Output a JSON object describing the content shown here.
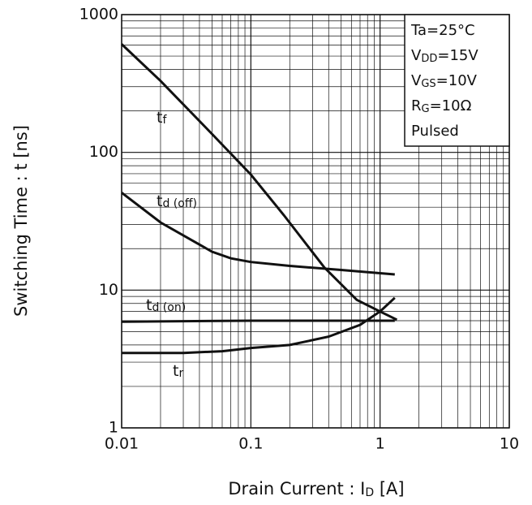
{
  "chart_data": {
    "type": "line",
    "log_x": true,
    "log_y": true,
    "grid": true,
    "x_label": {
      "main": "Drain Current : I",
      "sub": "D",
      "rest": " [A]"
    },
    "y_label": "Switching Time : t [ns]",
    "xlim": [
      0.01,
      10
    ],
    "ylim": [
      1,
      1000
    ],
    "xticks": [
      0.01,
      0.1,
      1,
      10
    ],
    "yticks": [
      1,
      10,
      100,
      1000
    ],
    "series": [
      {
        "name": {
          "main": "t",
          "sub": "f"
        },
        "color": "#111111",
        "x": [
          0.01,
          0.02,
          0.05,
          0.1,
          0.18,
          0.37,
          0.66,
          1.03,
          1.35
        ],
        "values": [
          610,
          330,
          136,
          69,
          35,
          14.6,
          8.5,
          6.9,
          6.1
        ]
      },
      {
        "name": {
          "main": "t",
          "sub": "d (off)"
        },
        "color": "#111111",
        "x": [
          0.01,
          0.02,
          0.05,
          0.07,
          0.1,
          0.2,
          0.5,
          1.3
        ],
        "values": [
          51,
          31,
          19,
          17,
          16,
          15,
          14,
          13
        ]
      },
      {
        "name": {
          "main": "t",
          "sub": "d (on)"
        },
        "color": "#111111",
        "x": [
          0.01,
          0.1,
          1,
          1.3
        ],
        "values": [
          5.9,
          6,
          6,
          6
        ]
      },
      {
        "name": {
          "main": "t",
          "sub": "r"
        },
        "color": "#111111",
        "x": [
          0.01,
          0.03,
          0.06,
          0.1,
          0.2,
          0.4,
          0.7,
          1,
          1.3
        ],
        "values": [
          3.5,
          3.5,
          3.6,
          3.8,
          4,
          4.6,
          5.6,
          7,
          8.8
        ]
      }
    ],
    "conditions": [
      [
        "Ta=25°C"
      ],
      [
        "V",
        "DD",
        "=15V"
      ],
      [
        "V",
        "GS",
        "=10V"
      ],
      [
        "R",
        "G",
        "=10Ω"
      ],
      [
        "Pulsed"
      ]
    ]
  }
}
